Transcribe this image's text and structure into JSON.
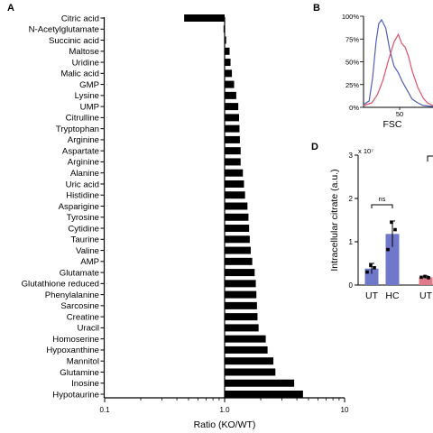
{
  "panel_labels": {
    "a": "A",
    "b": "B",
    "d": "D"
  },
  "chart_data": [
    {
      "type": "bar",
      "orientation": "horizontal",
      "panel": "A",
      "xscale": "log",
      "xlim": [
        0.1,
        10
      ],
      "xticks": [
        "0.1",
        "1.0",
        "10"
      ],
      "xlabel": "Ratio (KO/WT)",
      "categories": [
        "Citric acid",
        "N-Acetylglutamate",
        "Succinic acid",
        "Maltose",
        "Uridine",
        "Malic acid",
        "GMP",
        "Lysine",
        "UMP",
        "Citrulline",
        "Tryptophan",
        "Arginine",
        "Aspartate",
        "Arginine",
        "Alanine",
        "Uric acid",
        "Histidine",
        "Asparigine",
        "Tyrosine",
        "Cytidine",
        "Taurine",
        "Valine",
        "AMP",
        "Glutamate",
        "Glutathione reduced",
        "Phenylalanine",
        "Sarcosine",
        "Creatine",
        "Uracil",
        "Homoserine",
        "Hypoxanthine",
        "Mannitol",
        "Glutamine",
        "Inosine",
        "Hypotaurine"
      ],
      "values": [
        0.46,
        0.98,
        1.03,
        1.1,
        1.12,
        1.15,
        1.2,
        1.25,
        1.3,
        1.32,
        1.33,
        1.34,
        1.36,
        1.36,
        1.42,
        1.45,
        1.48,
        1.55,
        1.58,
        1.6,
        1.62,
        1.65,
        1.7,
        1.78,
        1.82,
        1.84,
        1.86,
        1.88,
        1.92,
        2.2,
        2.28,
        2.55,
        2.65,
        3.8,
        4.5
      ],
      "grid": false
    },
    {
      "type": "line",
      "panel": "B",
      "xlabel": "FSC",
      "yticks": [
        "100%",
        "75%",
        "50%",
        "25%",
        "0%"
      ],
      "xticks": [
        "50"
      ],
      "series": [
        {
          "color": "#5060b8",
          "points": [
            [
              0,
              0.03
            ],
            [
              0.08,
              0.07
            ],
            [
              0.13,
              0.32
            ],
            [
              0.18,
              0.72
            ],
            [
              0.22,
              0.92
            ],
            [
              0.26,
              0.96
            ],
            [
              0.32,
              0.87
            ],
            [
              0.38,
              0.62
            ],
            [
              0.44,
              0.45
            ],
            [
              0.5,
              0.38
            ],
            [
              0.56,
              0.28
            ],
            [
              0.62,
              0.2
            ],
            [
              0.7,
              0.09
            ],
            [
              0.78,
              0.05
            ],
            [
              0.86,
              0.02
            ],
            [
              1,
              0.01
            ]
          ]
        },
        {
          "color": "#e0506a",
          "points": [
            [
              0,
              0.02
            ],
            [
              0.12,
              0.05
            ],
            [
              0.2,
              0.14
            ],
            [
              0.28,
              0.3
            ],
            [
              0.36,
              0.52
            ],
            [
              0.44,
              0.72
            ],
            [
              0.5,
              0.8
            ],
            [
              0.55,
              0.7
            ],
            [
              0.6,
              0.66
            ],
            [
              0.65,
              0.55
            ],
            [
              0.7,
              0.4
            ],
            [
              0.78,
              0.22
            ],
            [
              0.86,
              0.1
            ],
            [
              0.92,
              0.05
            ],
            [
              1,
              0.02
            ]
          ]
        }
      ]
    },
    {
      "type": "bar",
      "panel": "D",
      "ylabel": "Intracellular citrate (a.u.)",
      "yexp": "x 10⁷",
      "ylim": [
        0,
        3
      ],
      "yticks": [
        "0",
        "1",
        "2",
        "3"
      ],
      "categories": [
        "UT",
        "HC",
        "UT"
      ],
      "series": [
        {
          "values": [
            0.38,
            1.18,
            0.18
          ],
          "errors": [
            0.12,
            0.3,
            0.03
          ],
          "colors": [
            "#6f78c9",
            "#6f78c9",
            "#e07a8a"
          ]
        }
      ],
      "points": [
        [
          0.3,
          0.45,
          0.4
        ],
        [
          0.82,
          1.45,
          1.28
        ],
        [
          0.18,
          0.2,
          0.17
        ]
      ],
      "annotation": "ns"
    }
  ]
}
